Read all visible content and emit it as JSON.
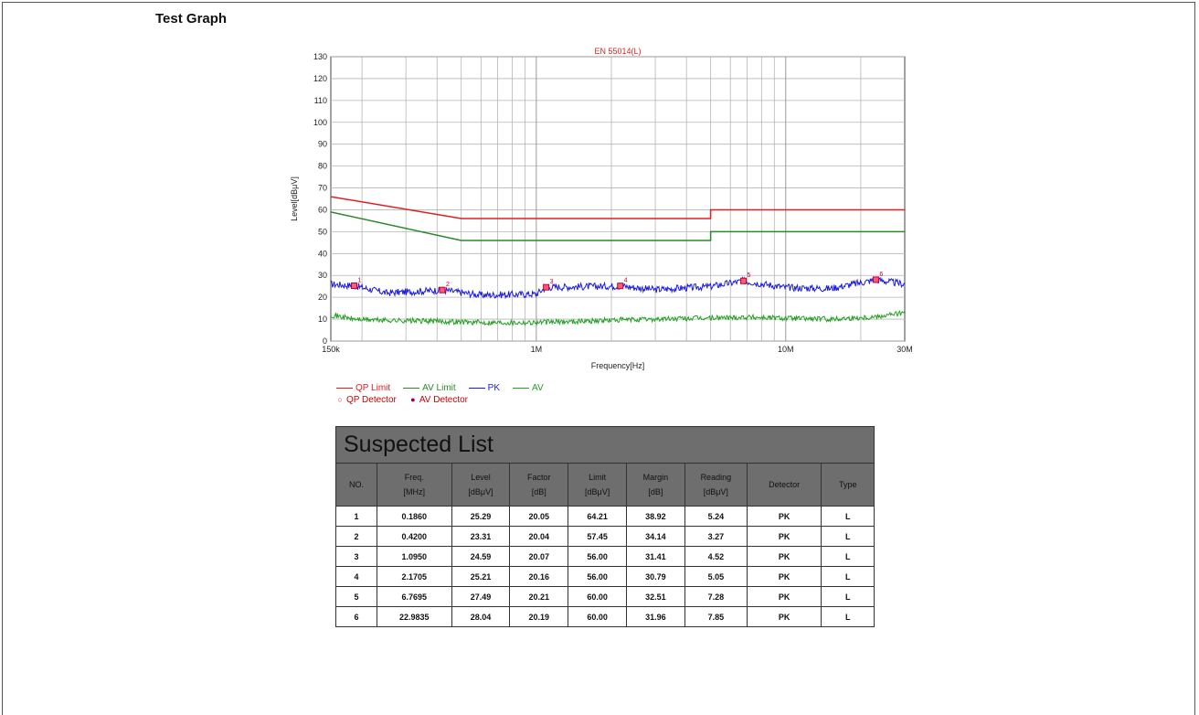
{
  "section_title": "Test Graph",
  "chart_data": {
    "type": "line",
    "title": "EN 55014(L)",
    "xlabel": "Frequency[Hz]",
    "ylabel": "Level[dBμV]",
    "x_scale": "log",
    "xlim": [
      150000,
      30000000
    ],
    "ylim": [
      0,
      130
    ],
    "x_ticks": [
      {
        "value": 150000,
        "label": "150k"
      },
      {
        "value": 1000000,
        "label": "1M"
      },
      {
        "value": 10000000,
        "label": "10M"
      },
      {
        "value": 30000000,
        "label": "30M"
      }
    ],
    "y_ticks": [
      0,
      10,
      20,
      30,
      40,
      50,
      60,
      70,
      80,
      90,
      100,
      110,
      120,
      130
    ],
    "grid": true,
    "legend_position": "bottom-left",
    "series": [
      {
        "name": "QP Limit",
        "color": "#e02020",
        "x": [
          150000,
          500000,
          500000,
          5000000,
          5000000,
          30000000
        ],
        "y": [
          66,
          56,
          56,
          56,
          60,
          60
        ]
      },
      {
        "name": "AV Limit",
        "color": "#2a8a2a",
        "x": [
          150000,
          500000,
          500000,
          5000000,
          5000000,
          30000000
        ],
        "y": [
          59,
          46,
          46,
          46,
          50,
          50
        ]
      },
      {
        "name": "PK",
        "color": "#1a1ae0",
        "x": [
          150000,
          186000,
          250000,
          420000,
          600000,
          1000000,
          1095000,
          2170500,
          3000000,
          5000000,
          6769500,
          10000000,
          15000000,
          22983500,
          30000000
        ],
        "y": [
          26,
          25.3,
          22,
          23.3,
          21,
          21.5,
          24.6,
          25.2,
          23.5,
          25,
          27.5,
          24.5,
          24,
          28,
          26
        ]
      },
      {
        "name": "AV",
        "color": "#22a022",
        "x": [
          150000,
          186000,
          250000,
          420000,
          600000,
          1000000,
          2000000,
          3000000,
          5000000,
          7000000,
          10000000,
          15000000,
          22000000,
          30000000
        ],
        "y": [
          12,
          10,
          9.5,
          9,
          8.5,
          8.5,
          9.5,
          10,
          10.5,
          11,
          10.5,
          10,
          11,
          13
        ]
      }
    ],
    "markers": [
      {
        "label": "1",
        "x": 186000,
        "y": 25.29
      },
      {
        "label": "2",
        "x": 420000,
        "y": 23.31
      },
      {
        "label": "3",
        "x": 1095000,
        "y": 24.59
      },
      {
        "label": "4",
        "x": 2170500,
        "y": 25.21
      },
      {
        "label": "5",
        "x": 6769500,
        "y": 27.49
      },
      {
        "label": "6",
        "x": 22983500,
        "y": 28.04
      }
    ],
    "legend": [
      {
        "label": "QP Limit",
        "kind": "line",
        "color": "#e02020"
      },
      {
        "label": "AV Limit",
        "kind": "line",
        "color": "#2a8a2a"
      },
      {
        "label": "PK",
        "kind": "line",
        "color": "#1a1ae0"
      },
      {
        "label": "AV",
        "kind": "line",
        "color": "#22a022"
      },
      {
        "label": "QP Detector",
        "kind": "marker",
        "symbol": "○",
        "color": "#e02020"
      },
      {
        "label": "AV Detector",
        "kind": "marker",
        "symbol": "●",
        "color": "#a00040"
      }
    ]
  },
  "suspected_list": {
    "title": "Suspected List",
    "headers": [
      [
        "NO."
      ],
      [
        "Freq.",
        "[MHz]"
      ],
      [
        "Level",
        "[dBμV]"
      ],
      [
        "Factor",
        "[dB]"
      ],
      [
        "Limit",
        "[dBμV]"
      ],
      [
        "Margin",
        "[dB]"
      ],
      [
        "Reading",
        "[dBμV]"
      ],
      [
        "Detector"
      ],
      [
        "Type"
      ]
    ],
    "rows": [
      [
        "1",
        "0.1860",
        "25.29",
        "20.05",
        "64.21",
        "38.92",
        "5.24",
        "PK",
        "L"
      ],
      [
        "2",
        "0.4200",
        "23.31",
        "20.04",
        "57.45",
        "34.14",
        "3.27",
        "PK",
        "L"
      ],
      [
        "3",
        "1.0950",
        "24.59",
        "20.07",
        "56.00",
        "31.41",
        "4.52",
        "PK",
        "L"
      ],
      [
        "4",
        "2.1705",
        "25.21",
        "20.16",
        "56.00",
        "30.79",
        "5.05",
        "PK",
        "L"
      ],
      [
        "5",
        "6.7695",
        "27.49",
        "20.21",
        "60.00",
        "32.51",
        "7.28",
        "PK",
        "L"
      ],
      [
        "6",
        "22.9835",
        "28.04",
        "20.19",
        "60.00",
        "31.96",
        "7.85",
        "PK",
        "L"
      ]
    ]
  }
}
